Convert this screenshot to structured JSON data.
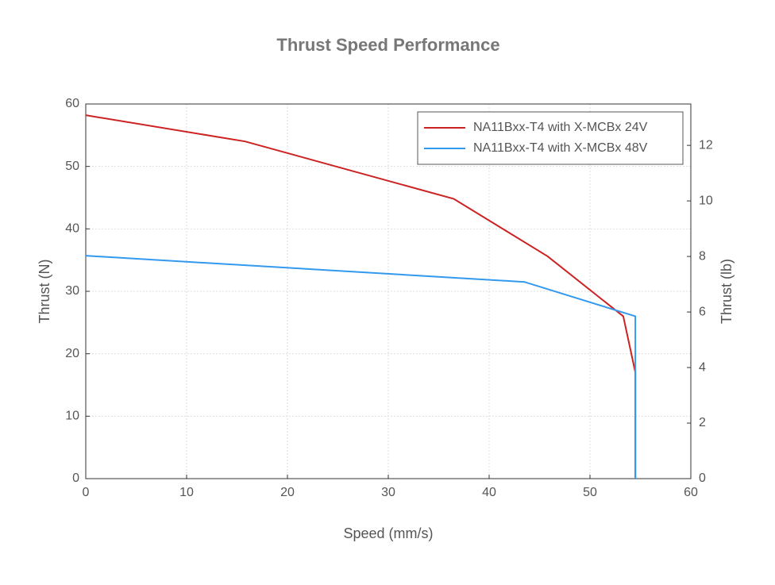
{
  "chart_data": {
    "type": "line",
    "title": "Thrust Speed Performance",
    "xlabel": "Speed (mm/s)",
    "ylabel": "Thrust (N)",
    "y2label": "Thrust (lb)",
    "xlim": [
      0,
      60
    ],
    "xticks": [
      0,
      10,
      20,
      30,
      40,
      50,
      60
    ],
    "ylim": [
      0,
      60
    ],
    "yticks": [
      0,
      10,
      20,
      30,
      40,
      50,
      60
    ],
    "y2lim": [
      0,
      13.49
    ],
    "y2ticks": [
      0,
      2,
      4,
      6,
      8,
      10,
      12
    ],
    "grid": true,
    "legend": "upper right",
    "series": [
      {
        "name": "NA11Bxx-T4 with X-MCBx 24V",
        "color": "#cc2222",
        "x": [
          0,
          15.8,
          36.5,
          45.8,
          53.3,
          54.5,
          54.5
        ],
        "values": [
          58.2,
          54,
          44.8,
          35.6,
          26,
          17,
          0
        ]
      },
      {
        "name": "NA11Bxx-T4 with X-MCBx 48V",
        "color": "#3399ee",
        "x": [
          0,
          43.5,
          54.5,
          54.5
        ],
        "values": [
          35.7,
          31.5,
          26,
          0
        ]
      }
    ]
  }
}
